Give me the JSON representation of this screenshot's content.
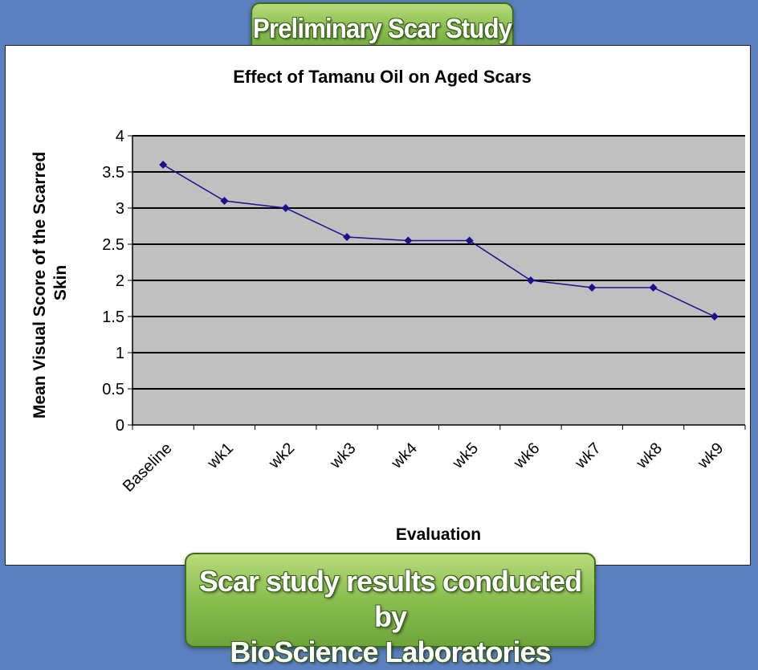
{
  "banner_top": "Preliminary Scar Study",
  "banner_bottom": {
    "line1": "Scar study results conducted by",
    "line2": "BioScience Laboratories"
  },
  "colors": {
    "background": "#5b80bf",
    "plot_area": "#c0c0c0",
    "series": "#1f0f8a",
    "banner": "#8cc152"
  },
  "chart_data": {
    "type": "line",
    "title": "Effect of Tamanu Oil on Aged Scars",
    "xlabel": "Evaluation",
    "ylabel_lines": [
      "Mean Visual Score of the Scarred",
      "Skin"
    ],
    "categories": [
      "Baseline",
      "wk1",
      "wk2",
      "wk3",
      "wk4",
      "wk5",
      "wk6",
      "wk7",
      "wk8",
      "wk9"
    ],
    "values": [
      3.6,
      3.1,
      3.0,
      2.6,
      2.55,
      2.55,
      2.0,
      1.9,
      1.9,
      1.5
    ],
    "ylim": [
      0,
      4
    ],
    "yticks": [
      "0",
      "0.5",
      "1",
      "1.5",
      "2",
      "2.5",
      "3",
      "3.5",
      "4"
    ],
    "ytick_values": [
      0,
      0.5,
      1,
      1.5,
      2,
      2.5,
      3,
      3.5,
      4
    ],
    "grid": true,
    "marker": "diamond",
    "legend": "none"
  }
}
